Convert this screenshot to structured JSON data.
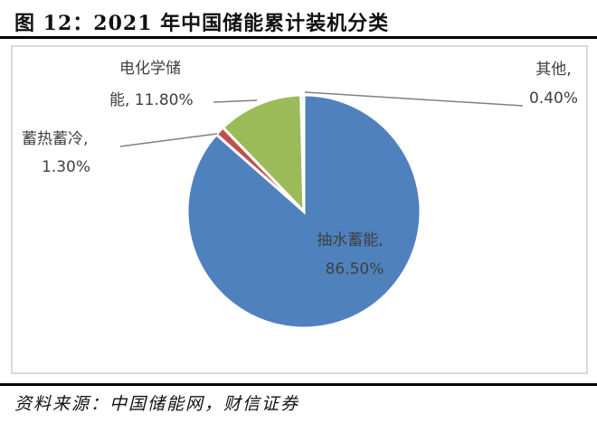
{
  "header": {
    "title": "图 12：2021 年中国储能累计装机分类"
  },
  "footer": {
    "source": "资料来源：中国储能网，财信证券"
  },
  "chart_data": {
    "type": "pie",
    "title": "2021 年中国储能累计装机分类",
    "categories": [
      "抽水蓄能",
      "蓄热蓄冷",
      "电化学储能",
      "其他"
    ],
    "values": [
      86.5,
      1.3,
      11.8,
      0.4
    ],
    "unit": "%",
    "colors": [
      "#4F81BD",
      "#C0504D",
      "#9BBB59",
      "#4F81BD"
    ],
    "labels": [
      {
        "line1": "抽水蓄能,",
        "line2": "86.50%"
      },
      {
        "line1": "蓄热蓄冷,",
        "line2": "1.30%"
      },
      {
        "line1": "电化学储",
        "line2": "能, 11.80%"
      },
      {
        "line1": "其他,",
        "line2": "0.40%"
      }
    ],
    "legend": "none (data labels with leader lines)"
  }
}
